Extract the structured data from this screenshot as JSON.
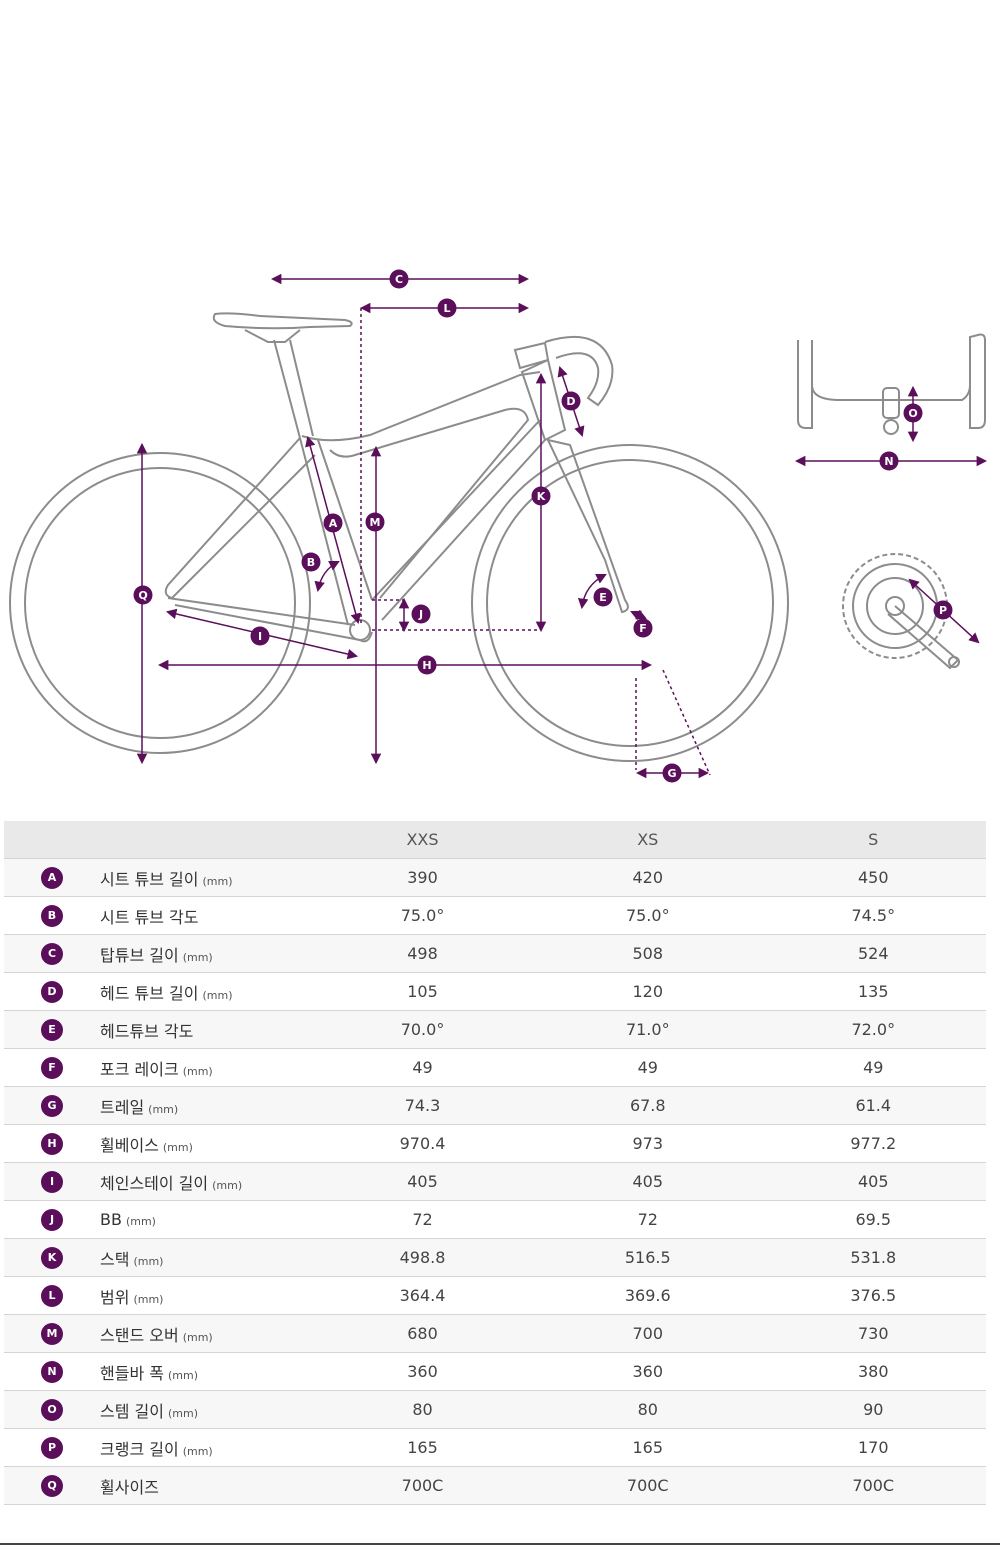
{
  "colors": {
    "accent": "#5b0f5a",
    "frame": "#8c8c8c"
  },
  "diagram_labels": [
    "A",
    "B",
    "C",
    "D",
    "E",
    "F",
    "G",
    "H",
    "I",
    "J",
    "K",
    "L",
    "M",
    "N",
    "O",
    "P",
    "Q"
  ],
  "table": {
    "headers": [
      "",
      "",
      "XXS",
      "XS",
      "S"
    ],
    "rows": [
      {
        "key": "A",
        "name": "시트 튜브 길이",
        "unit": "(mm)",
        "values": [
          "390",
          "420",
          "450"
        ]
      },
      {
        "key": "B",
        "name": "시트 튜브 각도",
        "unit": "",
        "values": [
          "75.0°",
          "75.0°",
          "74.5°"
        ]
      },
      {
        "key": "C",
        "name": "탑튜브 길이",
        "unit": "(mm)",
        "values": [
          "498",
          "508",
          "524"
        ]
      },
      {
        "key": "D",
        "name": "헤드 튜브 길이",
        "unit": "(mm)",
        "values": [
          "105",
          "120",
          "135"
        ]
      },
      {
        "key": "E",
        "name": "헤드튜브 각도",
        "unit": "",
        "values": [
          "70.0°",
          "71.0°",
          "72.0°"
        ]
      },
      {
        "key": "F",
        "name": "포크 레이크",
        "unit": "(mm)",
        "values": [
          "49",
          "49",
          "49"
        ]
      },
      {
        "key": "G",
        "name": "트레일",
        "unit": "(mm)",
        "values": [
          "74.3",
          "67.8",
          "61.4"
        ]
      },
      {
        "key": "H",
        "name": "휠베이스",
        "unit": "(mm)",
        "values": [
          "970.4",
          "973",
          "977.2"
        ]
      },
      {
        "key": "I",
        "name": "체인스테이 길이",
        "unit": "(mm)",
        "values": [
          "405",
          "405",
          "405"
        ]
      },
      {
        "key": "J",
        "name": "BB",
        "unit": "(mm)",
        "values": [
          "72",
          "72",
          "69.5"
        ]
      },
      {
        "key": "K",
        "name": "스택",
        "unit": "(mm)",
        "values": [
          "498.8",
          "516.5",
          "531.8"
        ]
      },
      {
        "key": "L",
        "name": "범위",
        "unit": "(mm)",
        "values": [
          "364.4",
          "369.6",
          "376.5"
        ]
      },
      {
        "key": "M",
        "name": "스탠드 오버",
        "unit": "(mm)",
        "values": [
          "680",
          "700",
          "730"
        ]
      },
      {
        "key": "N",
        "name": "핸들바 폭",
        "unit": "(mm)",
        "values": [
          "360",
          "360",
          "380"
        ]
      },
      {
        "key": "O",
        "name": "스템 길이",
        "unit": "(mm)",
        "values": [
          "80",
          "80",
          "90"
        ]
      },
      {
        "key": "P",
        "name": "크랭크 길이",
        "unit": "(mm)",
        "values": [
          "165",
          "165",
          "170"
        ]
      },
      {
        "key": "Q",
        "name": "휠사이즈",
        "unit": "",
        "values": [
          "700C",
          "700C",
          "700C"
        ]
      }
    ]
  }
}
